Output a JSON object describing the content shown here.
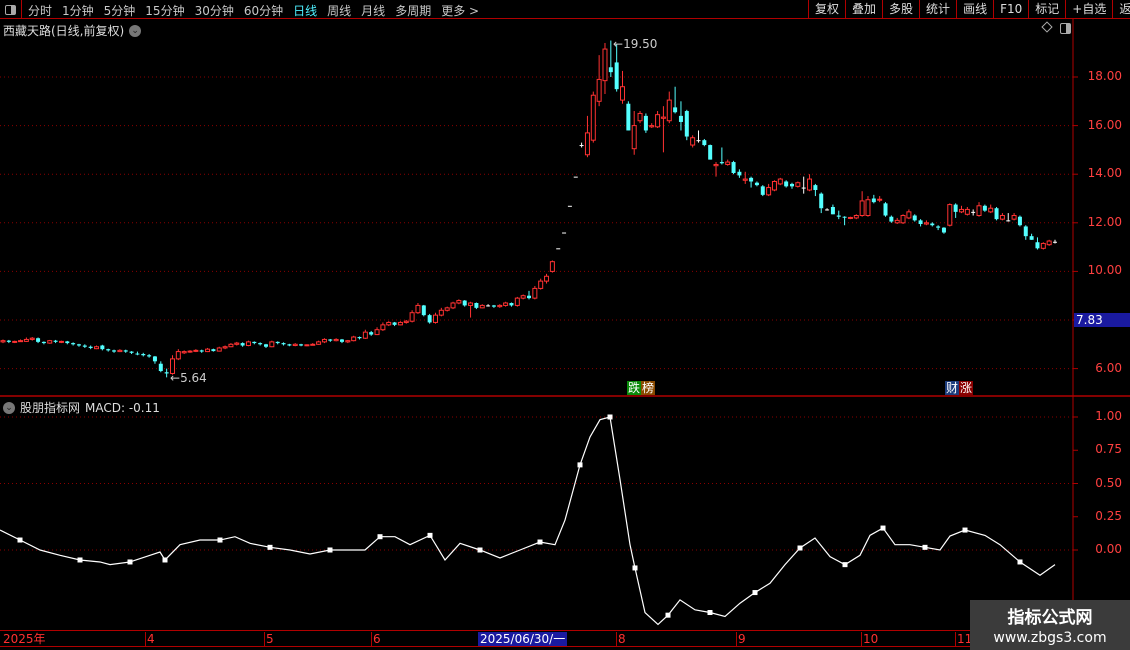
{
  "topbar": {
    "periods": [
      {
        "label": "分时"
      },
      {
        "label": "1分钟"
      },
      {
        "label": "5分钟"
      },
      {
        "label": "15分钟"
      },
      {
        "label": "30分钟"
      },
      {
        "label": "60分钟"
      },
      {
        "label": "日线",
        "active": true
      },
      {
        "label": "周线"
      },
      {
        "label": "月线"
      },
      {
        "label": "多周期"
      },
      {
        "label": "更多 >"
      }
    ],
    "buttons": [
      "复权",
      "叠加",
      "多股",
      "统计",
      "画线",
      "F10",
      "标记",
      "+自选",
      "返回"
    ]
  },
  "main": {
    "title": "西藏天路(日线,前复权)",
    "y_labels": [
      "18.00",
      "16.00",
      "14.00",
      "12.00",
      "10.00",
      "6.00"
    ],
    "current_price": "7.83",
    "high_label": "19.50",
    "low_label": "5.64",
    "signals": [
      {
        "a": "跌",
        "b": "榜",
        "ca": "#0a8a0a",
        "cb": "#8a4a00"
      },
      {
        "a": "财",
        "b": "涨",
        "ca": "#1c3c7c",
        "cb": "#8a0000"
      }
    ]
  },
  "sub": {
    "title": "股朋指标网",
    "indicator": "MACD: -0.11",
    "y_labels": [
      "1.00",
      "0.75",
      "0.50",
      "0.25",
      "0.00"
    ]
  },
  "timeaxis": {
    "labels": [
      "2025年",
      "4",
      "5",
      "6",
      "8",
      "9",
      "10",
      "11"
    ],
    "current_date": "2025/06/30/一"
  },
  "watermark": {
    "line1": "指标公式网",
    "line2": "www.zbgs3.com"
  },
  "colors": {
    "up": "#ff3232",
    "down": "#54ffff",
    "flat": "#ffffff",
    "border": "#b00000",
    "axis_text": "#ff4040",
    "active_tab": "#4ef0ff"
  },
  "chart_data": [
    {
      "type": "candlestick",
      "series": "daily OHLC",
      "ylim": [
        5.4,
        19.8
      ],
      "grid": "dotted every 2.00",
      "ohlc": [
        [
          7.1,
          7.2,
          7.05,
          7.15
        ],
        [
          7.15,
          7.18,
          7.05,
          7.1
        ],
        [
          7.08,
          7.15,
          7.05,
          7.12
        ],
        [
          7.12,
          7.2,
          7.1,
          7.15
        ],
        [
          7.12,
          7.28,
          7.1,
          7.2
        ],
        [
          7.2,
          7.3,
          7.15,
          7.25
        ],
        [
          7.25,
          7.28,
          7.05,
          7.1
        ],
        [
          7.1,
          7.12,
          7.0,
          7.05
        ],
        [
          7.05,
          7.18,
          7.02,
          7.15
        ],
        [
          7.15,
          7.18,
          7.05,
          7.1
        ],
        [
          7.08,
          7.15,
          7.05,
          7.12
        ],
        [
          7.12,
          7.14,
          7.0,
          7.05
        ],
        [
          7.05,
          7.08,
          6.95,
          7.0
        ],
        [
          7.0,
          7.02,
          6.9,
          6.95
        ],
        [
          6.95,
          7.0,
          6.85,
          6.9
        ],
        [
          6.9,
          6.95,
          6.8,
          6.85
        ],
        [
          6.82,
          6.95,
          6.8,
          6.9
        ],
        [
          6.95,
          6.98,
          6.75,
          6.8
        ],
        [
          6.8,
          6.82,
          6.7,
          6.75
        ],
        [
          6.75,
          6.78,
          6.65,
          6.7
        ],
        [
          6.7,
          6.8,
          6.68,
          6.75
        ],
        [
          6.75,
          6.78,
          6.65,
          6.7
        ],
        [
          6.7,
          6.72,
          6.6,
          6.65
        ],
        [
          6.62,
          6.7,
          6.55,
          6.6
        ],
        [
          6.6,
          6.65,
          6.5,
          6.55
        ],
        [
          6.55,
          6.6,
          6.45,
          6.5
        ],
        [
          6.5,
          6.52,
          6.2,
          6.3
        ],
        [
          6.2,
          6.3,
          5.85,
          5.9
        ],
        [
          5.85,
          6.0,
          5.64,
          5.8
        ],
        [
          5.8,
          6.55,
          5.75,
          6.4
        ],
        [
          6.4,
          6.8,
          6.35,
          6.7
        ],
        [
          6.65,
          6.75,
          6.6,
          6.7
        ],
        [
          6.7,
          6.76,
          6.65,
          6.72
        ],
        [
          6.72,
          6.8,
          6.68,
          6.75
        ],
        [
          6.75,
          6.78,
          6.65,
          6.7
        ],
        [
          6.7,
          6.85,
          6.68,
          6.8
        ],
        [
          6.8,
          6.82,
          6.7,
          6.72
        ],
        [
          6.72,
          6.9,
          6.7,
          6.85
        ],
        [
          6.85,
          6.95,
          6.8,
          6.9
        ],
        [
          6.9,
          7.05,
          6.88,
          7.0
        ],
        [
          7.0,
          7.1,
          6.95,
          7.05
        ],
        [
          7.05,
          7.08,
          6.9,
          6.95
        ],
        [
          6.95,
          7.15,
          6.92,
          7.1
        ],
        [
          7.1,
          7.12,
          7.0,
          7.05
        ],
        [
          7.05,
          7.08,
          6.95,
          7.0
        ],
        [
          7.0,
          7.02,
          6.85,
          6.9
        ],
        [
          6.9,
          7.15,
          6.88,
          7.1
        ],
        [
          7.1,
          7.12,
          7.0,
          7.05
        ],
        [
          7.05,
          7.08,
          6.95,
          7.0
        ],
        [
          7.0,
          7.02,
          6.92,
          6.95
        ],
        [
          6.95,
          7.05,
          6.92,
          7.0
        ],
        [
          7.0,
          7.02,
          6.92,
          6.95
        ],
        [
          6.95,
          7.0,
          6.92,
          6.98
        ],
        [
          6.98,
          7.05,
          6.95,
          7.0
        ],
        [
          7.0,
          7.15,
          6.98,
          7.1
        ],
        [
          7.1,
          7.25,
          7.05,
          7.2
        ],
        [
          7.2,
          7.22,
          7.1,
          7.15
        ],
        [
          7.15,
          7.25,
          7.12,
          7.2
        ],
        [
          7.2,
          7.22,
          7.05,
          7.1
        ],
        [
          7.1,
          7.18,
          7.05,
          7.15
        ],
        [
          7.15,
          7.35,
          7.12,
          7.3
        ],
        [
          7.3,
          7.32,
          7.2,
          7.25
        ],
        [
          7.25,
          7.6,
          7.22,
          7.5
        ],
        [
          7.5,
          7.55,
          7.35,
          7.4
        ],
        [
          7.4,
          7.7,
          7.38,
          7.6
        ],
        [
          7.6,
          7.9,
          7.55,
          7.8
        ],
        [
          7.8,
          7.95,
          7.75,
          7.9
        ],
        [
          7.9,
          7.92,
          7.75,
          7.8
        ],
        [
          7.8,
          7.95,
          7.78,
          7.9
        ],
        [
          7.9,
          8.0,
          7.85,
          7.95
        ],
        [
          7.95,
          8.4,
          7.9,
          8.3
        ],
        [
          8.3,
          8.7,
          8.25,
          8.6
        ],
        [
          8.6,
          8.62,
          8.15,
          8.2
        ],
        [
          8.2,
          8.25,
          7.85,
          7.9
        ],
        [
          7.9,
          8.3,
          7.85,
          8.2
        ],
        [
          8.2,
          8.5,
          8.15,
          8.4
        ],
        [
          8.4,
          8.55,
          8.35,
          8.5
        ],
        [
          8.5,
          8.75,
          8.45,
          8.7
        ],
        [
          8.7,
          8.85,
          8.65,
          8.8
        ],
        [
          8.8,
          8.82,
          8.55,
          8.6
        ],
        [
          8.6,
          8.75,
          8.1,
          8.7
        ],
        [
          8.7,
          8.72,
          8.45,
          8.5
        ],
        [
          8.5,
          8.65,
          8.48,
          8.6
        ],
        [
          8.6,
          8.65,
          8.55,
          8.6
        ],
        [
          8.6,
          8.62,
          8.5,
          8.55
        ],
        [
          8.55,
          8.65,
          8.5,
          8.6
        ],
        [
          8.6,
          8.75,
          8.55,
          8.7
        ],
        [
          8.7,
          8.72,
          8.55,
          8.6
        ],
        [
          8.6,
          8.95,
          8.55,
          8.9
        ],
        [
          8.9,
          9.05,
          8.85,
          9.0
        ],
        [
          9.0,
          9.2,
          8.85,
          8.9
        ],
        [
          8.9,
          9.4,
          8.85,
          9.3
        ],
        [
          9.3,
          9.7,
          9.25,
          9.6
        ],
        [
          9.6,
          9.9,
          9.5,
          9.8
        ],
        [
          10.0,
          10.45,
          9.95,
          10.4
        ],
        [
          10.95,
          10.95,
          10.95,
          10.95
        ],
        [
          11.6,
          11.6,
          11.6,
          11.6
        ],
        [
          12.7,
          12.7,
          12.7,
          12.7
        ],
        [
          13.9,
          13.9,
          13.9,
          13.9
        ],
        [
          15.2,
          15.3,
          15.1,
          15.2
        ],
        [
          14.8,
          16.4,
          14.7,
          15.7
        ],
        [
          15.4,
          17.4,
          15.3,
          17.25
        ],
        [
          17.0,
          18.9,
          16.8,
          17.9
        ],
        [
          17.85,
          19.4,
          17.3,
          19.15
        ],
        [
          18.4,
          19.5,
          18.0,
          18.2
        ],
        [
          18.6,
          19.36,
          17.4,
          17.5
        ],
        [
          17.05,
          18.25,
          16.9,
          17.6
        ],
        [
          16.9,
          17.0,
          15.8,
          15.8
        ],
        [
          15.05,
          16.6,
          14.8,
          16.0
        ],
        [
          16.2,
          16.6,
          16.1,
          16.5
        ],
        [
          16.4,
          16.5,
          15.7,
          15.8
        ],
        [
          15.95,
          16.1,
          15.9,
          16.0
        ],
        [
          15.95,
          16.6,
          15.9,
          16.45
        ],
        [
          16.3,
          16.8,
          14.9,
          16.35
        ],
        [
          16.2,
          17.4,
          16.1,
          17.05
        ],
        [
          16.75,
          17.6,
          16.5,
          16.55
        ],
        [
          16.4,
          17.0,
          15.8,
          16.15
        ],
        [
          16.6,
          16.65,
          15.4,
          15.55
        ],
        [
          15.2,
          15.6,
          15.1,
          15.5
        ],
        [
          15.4,
          15.8,
          15.3,
          15.4
        ],
        [
          15.4,
          15.45,
          15.15,
          15.2
        ],
        [
          15.2,
          15.22,
          14.6,
          14.6
        ],
        [
          14.35,
          14.5,
          13.9,
          14.4
        ],
        [
          14.5,
          15.1,
          14.4,
          14.45
        ],
        [
          14.4,
          14.6,
          14.35,
          14.5
        ],
        [
          14.5,
          14.55,
          14.0,
          14.05
        ],
        [
          14.1,
          14.2,
          13.85,
          13.95
        ],
        [
          13.75,
          14.1,
          13.6,
          13.8
        ],
        [
          13.85,
          13.9,
          13.45,
          13.7
        ],
        [
          13.65,
          13.7,
          13.5,
          13.55
        ],
        [
          13.5,
          13.55,
          13.1,
          13.15
        ],
        [
          13.15,
          13.6,
          13.1,
          13.45
        ],
        [
          13.35,
          13.75,
          13.3,
          13.7
        ],
        [
          13.6,
          13.85,
          13.55,
          13.8
        ],
        [
          13.7,
          13.75,
          13.45,
          13.5
        ],
        [
          13.6,
          13.65,
          13.4,
          13.5
        ],
        [
          13.5,
          13.7,
          13.45,
          13.65
        ],
        [
          13.45,
          13.9,
          13.2,
          13.45
        ],
        [
          13.35,
          14.0,
          13.3,
          13.8
        ],
        [
          13.55,
          13.6,
          13.1,
          13.35
        ],
        [
          13.2,
          13.25,
          12.4,
          12.6
        ],
        [
          12.55,
          12.6,
          12.5,
          12.55
        ],
        [
          12.65,
          12.75,
          12.35,
          12.35
        ],
        [
          12.3,
          12.5,
          12.15,
          12.25
        ],
        [
          12.25,
          12.27,
          11.9,
          12.22
        ],
        [
          12.18,
          12.25,
          12.15,
          12.22
        ],
        [
          12.2,
          12.35,
          12.15,
          12.3
        ],
        [
          12.3,
          13.3,
          12.25,
          12.9
        ],
        [
          12.3,
          13.1,
          12.25,
          12.95
        ],
        [
          13.0,
          13.15,
          12.8,
          12.85
        ],
        [
          12.95,
          13.1,
          12.85,
          12.97
        ],
        [
          12.8,
          12.85,
          12.25,
          12.3
        ],
        [
          12.25,
          12.3,
          12.0,
          12.05
        ],
        [
          12.0,
          12.2,
          11.95,
          12.1
        ],
        [
          12.0,
          12.35,
          11.95,
          12.3
        ],
        [
          12.2,
          12.55,
          12.15,
          12.45
        ],
        [
          12.3,
          12.35,
          12.05,
          12.1
        ],
        [
          12.1,
          12.15,
          11.85,
          11.95
        ],
        [
          11.95,
          12.1,
          11.9,
          12.0
        ],
        [
          11.97,
          12.02,
          11.85,
          11.9
        ],
        [
          11.85,
          11.9,
          11.7,
          11.8
        ],
        [
          11.8,
          11.82,
          11.55,
          11.6
        ],
        [
          11.9,
          12.8,
          11.85,
          12.75
        ],
        [
          12.75,
          12.8,
          12.2,
          12.45
        ],
        [
          12.45,
          12.7,
          12.4,
          12.55
        ],
        [
          12.35,
          12.65,
          12.3,
          12.55
        ],
        [
          12.45,
          12.55,
          12.3,
          12.45
        ],
        [
          12.3,
          12.85,
          12.25,
          12.7
        ],
        [
          12.7,
          12.75,
          12.45,
          12.5
        ],
        [
          12.45,
          12.75,
          12.4,
          12.6
        ],
        [
          12.6,
          12.65,
          12.1,
          12.15
        ],
        [
          12.15,
          12.4,
          12.1,
          12.3
        ],
        [
          12.1,
          12.4,
          12.05,
          12.1
        ],
        [
          12.15,
          12.4,
          12.1,
          12.3
        ],
        [
          12.25,
          12.3,
          11.85,
          11.9
        ],
        [
          11.85,
          11.9,
          11.3,
          11.45
        ],
        [
          11.45,
          11.55,
          11.3,
          11.3
        ],
        [
          11.2,
          11.4,
          10.9,
          10.95
        ],
        [
          10.95,
          11.2,
          10.9,
          11.15
        ],
        [
          11.1,
          11.3,
          11.05,
          11.25
        ],
        [
          11.22,
          11.3,
          11.15,
          11.22
        ]
      ]
    },
    {
      "type": "line",
      "series": "MACD",
      "ylim": [
        -0.65,
        1.05
      ],
      "y_ticks": [
        0,
        0.25,
        0.5,
        0.75,
        1.0
      ],
      "values": [
        0.15,
        0.075,
        0,
        -0.04,
        -0.075,
        -0.09,
        -0.11,
        -0.09,
        -0.04,
        -0.015,
        -0.075,
        0.04,
        0.075,
        0.075,
        0.1,
        0.05,
        0.02,
        0,
        -0.03,
        0,
        0,
        0,
        0.1,
        0.1,
        0.04,
        0.11,
        -0.075,
        0.05,
        0,
        -0.06,
        0,
        0.06,
        0.04,
        0.225,
        0.64,
        0.85,
        0.98,
        1.0,
        0.53,
        0.04,
        -0.135,
        -0.47,
        -0.56,
        -0.49,
        -0.375,
        -0.45,
        -0.47,
        -0.5,
        -0.4,
        -0.32,
        -0.25,
        -0.11,
        0.015,
        0.09,
        -0.05,
        -0.11,
        -0.04,
        0.11,
        0.165,
        0.04,
        0.04,
        0.02,
        0,
        0.105,
        0.15,
        0.11,
        0.04,
        -0.09,
        -0.19,
        -0.11
      ]
    }
  ]
}
